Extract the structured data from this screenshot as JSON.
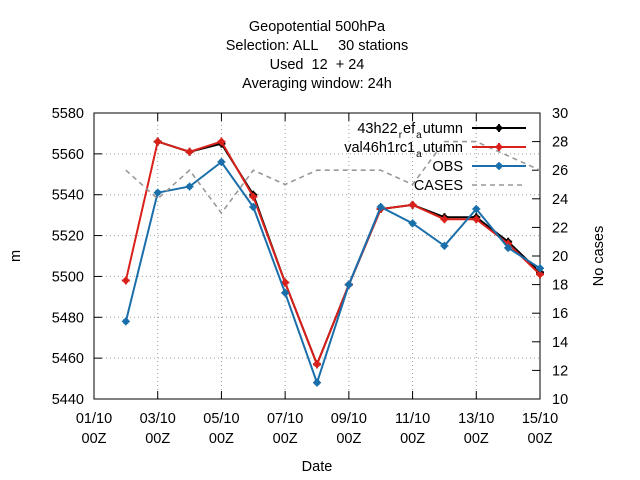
{
  "chart_data": {
    "type": "line",
    "title_lines": [
      "Geopotential 500hPa",
      "Selection: ALL     30 stations",
      "Used  12  + 24",
      "Averaging window: 24h"
    ],
    "xlabel": "Date",
    "ylabel": "m",
    "y2label": "No cases",
    "ylim": [
      5440,
      5580
    ],
    "y2lim": [
      10,
      30
    ],
    "grid": true,
    "legend_position": "top-right",
    "x_ticks": [
      {
        "x": 0,
        "l1": "01/10",
        "l2": "00Z"
      },
      {
        "x": 2,
        "l1": "03/10",
        "l2": "00Z"
      },
      {
        "x": 4,
        "l1": "05/10",
        "l2": "00Z"
      },
      {
        "x": 6,
        "l1": "07/10",
        "l2": "00Z"
      },
      {
        "x": 8,
        "l1": "09/10",
        "l2": "00Z"
      },
      {
        "x": 10,
        "l1": "11/10",
        "l2": "00Z"
      },
      {
        "x": 12,
        "l1": "13/10",
        "l2": "00Z"
      },
      {
        "x": 14,
        "l1": "15/10",
        "l2": "00Z"
      }
    ],
    "y_ticks": [
      5440,
      5460,
      5480,
      5500,
      5520,
      5540,
      5560,
      5580
    ],
    "y2_ticks": [
      10,
      12,
      14,
      16,
      18,
      20,
      22,
      24,
      26,
      28,
      30
    ],
    "x": [
      1,
      2,
      3,
      4,
      5,
      6,
      7,
      8,
      9,
      10,
      11,
      12,
      13,
      14
    ],
    "series": [
      {
        "name": "43h22",
        "sub": "r",
        "name2": "ef",
        "sub2": "a",
        "name3": "utumn",
        "axis": "y",
        "color": "#000000",
        "marker": "plus",
        "dash": "",
        "values": [
          null,
          5566,
          5561,
          5565,
          5540,
          5497,
          5457,
          5496,
          5533,
          5535,
          5529,
          5529,
          5517,
          5502
        ]
      },
      {
        "name": "val46h1rc1",
        "sub": "a",
        "name2": "utumn",
        "sub2": "",
        "name3": "",
        "axis": "y",
        "color": "#d9201a",
        "marker": "plus",
        "dash": "",
        "values": [
          5498,
          5566,
          5561,
          5566,
          5539,
          5497,
          5457,
          5496,
          5533,
          5535,
          5528,
          5528,
          5516,
          5501
        ]
      },
      {
        "name": "OBS",
        "sub": "",
        "name2": "",
        "sub2": "",
        "name3": "",
        "axis": "y",
        "color": "#1a6faa",
        "marker": "star",
        "dash": "",
        "values": [
          5478,
          5541,
          5544,
          5556,
          5534,
          5492,
          5448,
          5496,
          5534,
          5526,
          5515,
          5533,
          5514,
          5504
        ]
      },
      {
        "name": "CASES",
        "sub": "",
        "name2": "",
        "sub2": "",
        "name3": "",
        "axis": "y2",
        "color": "#999999",
        "marker": "none",
        "dash": "5,4",
        "values": [
          26,
          24,
          26,
          23,
          26,
          25,
          26,
          26,
          26,
          25,
          28,
          28,
          27,
          26
        ]
      }
    ]
  }
}
